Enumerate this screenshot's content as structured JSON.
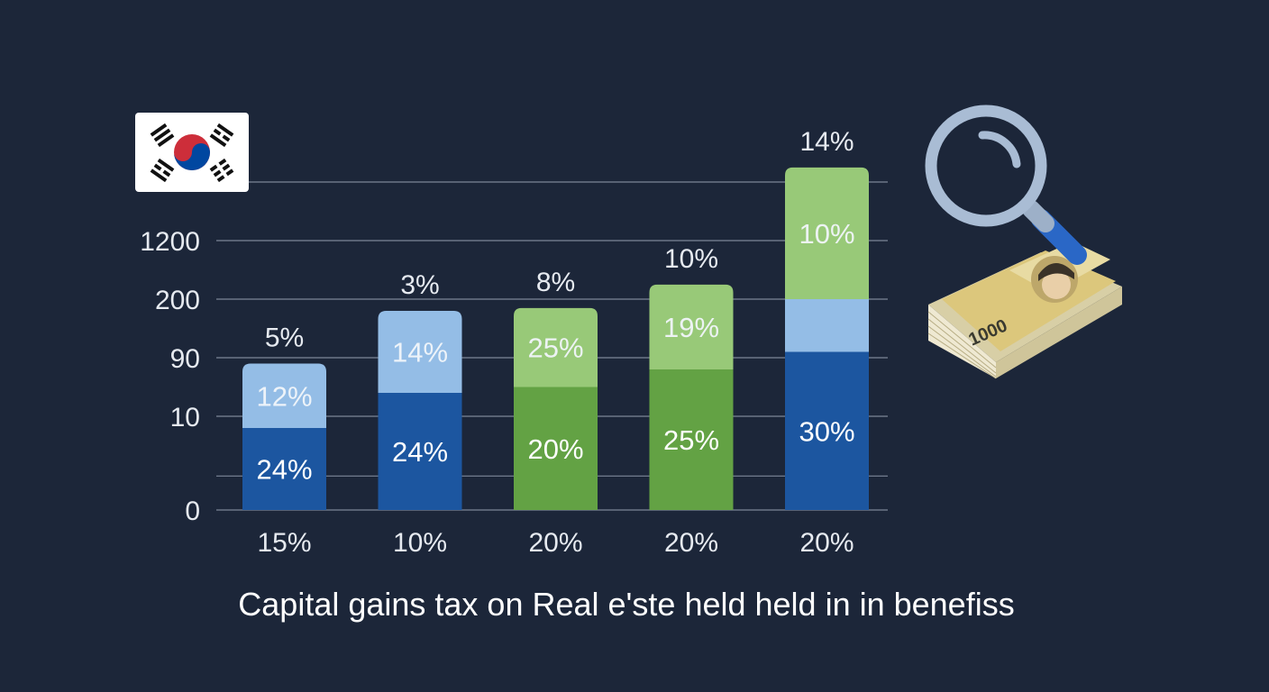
{
  "chart_data": {
    "type": "bar",
    "stacked": true,
    "title": "Capital gains tax on Real e'ste held held in in benefiss",
    "y_tick_labels": [
      "0",
      "10",
      "90",
      "200",
      "1200"
    ],
    "categories": [
      "15%",
      "10%",
      "20%",
      "20%",
      "20%"
    ],
    "top_labels": [
      "5%",
      "3%",
      "8%",
      "10%",
      "14%"
    ],
    "segments": [
      {
        "bottom": {
          "value": 1.4,
          "label": "24%",
          "color": "#1c56a0"
        },
        "top": {
          "value": 1.1,
          "label": "12%",
          "color": "#94bde6"
        }
      },
      {
        "bottom": {
          "value": 2.0,
          "label": "24%",
          "color": "#1c56a0"
        },
        "top": {
          "value": 1.4,
          "label": "14%",
          "color": "#94bde6"
        }
      },
      {
        "bottom": {
          "value": 2.1,
          "label": "20%",
          "color": "#63a244"
        },
        "top": {
          "value": 1.35,
          "label": "25%",
          "color": "#98c978"
        }
      },
      {
        "bottom": {
          "value": 2.4,
          "label": "25%",
          "color": "#63a244"
        },
        "top": {
          "value": 1.45,
          "label": "19%",
          "color": "#98c978"
        }
      },
      {
        "bottom": {
          "value": 2.7,
          "label": "30%",
          "color": "#1c56a0"
        },
        "middle": {
          "value": 0.9,
          "label": "",
          "color": "#94bde6"
        },
        "top": {
          "value": 2.25,
          "label": "10%",
          "color": "#98c978"
        }
      }
    ],
    "grid": true
  },
  "icons": [
    "south-korea-flag-icon",
    "magnifying-glass-icon",
    "won-banknote-stack-icon"
  ],
  "banknote_text": "1000",
  "colors": {
    "background": "#1c2639",
    "dark_blue": "#1c56a0",
    "light_blue": "#94bde6",
    "dark_green": "#63a244",
    "light_green": "#98c978"
  }
}
